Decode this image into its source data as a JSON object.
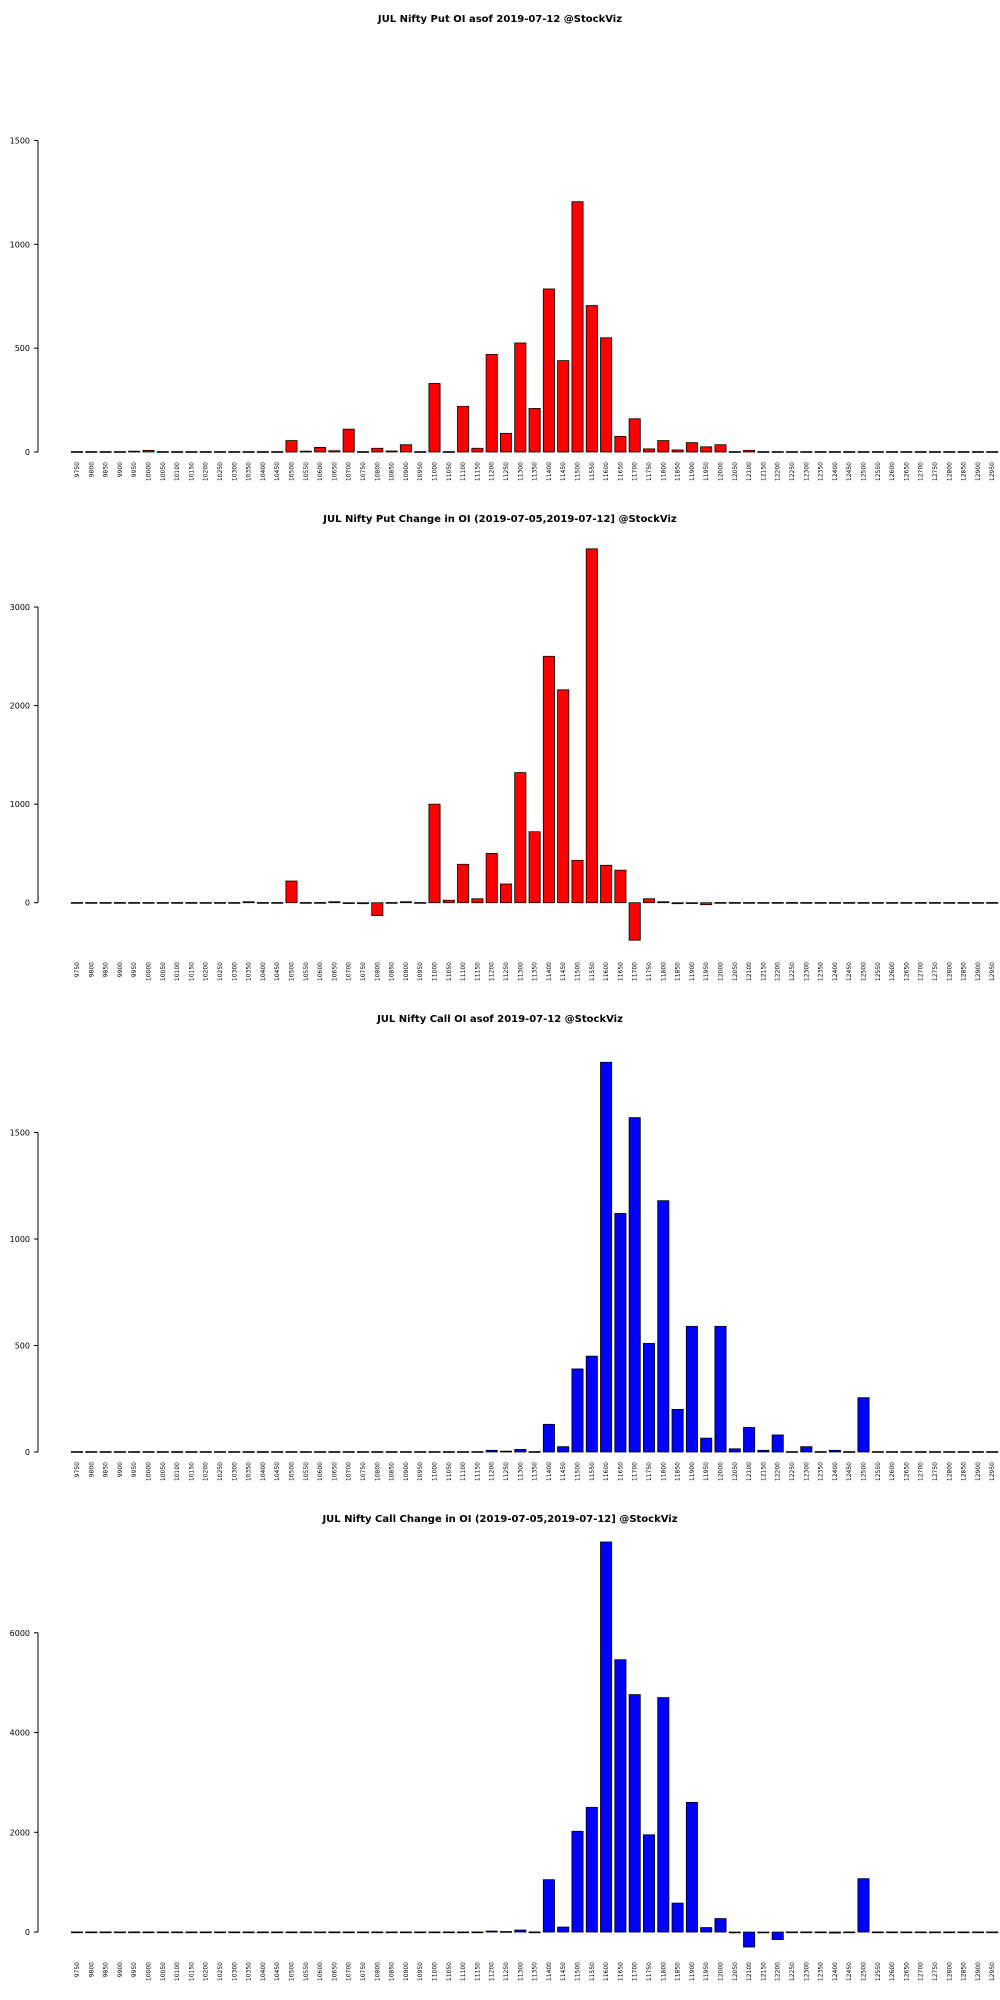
{
  "chart_data": [
    {
      "type": "bar",
      "title": "JUL Nifty Put OI asof 2019-07-12 @StockViz",
      "color": "#ff0000",
      "yticks": [
        0,
        500,
        1000,
        1500
      ],
      "ylim": [
        0,
        1560
      ],
      "categories": [
        "9750",
        "9800",
        "9850",
        "9900",
        "9950",
        "10000",
        "10050",
        "10100",
        "10150",
        "10200",
        "10250",
        "10300",
        "10350",
        "10400",
        "10450",
        "10500",
        "10550",
        "10600",
        "10650",
        "10700",
        "10750",
        "10800",
        "10850",
        "10900",
        "10950",
        "11000",
        "11050",
        "11100",
        "11150",
        "11200",
        "11250",
        "11300",
        "11350",
        "11400",
        "11450",
        "11500",
        "11550",
        "11600",
        "11650",
        "11700",
        "11750",
        "11800",
        "11850",
        "11900",
        "11950",
        "12000",
        "12050",
        "12100",
        "12150",
        "12200",
        "12250",
        "12300",
        "12350",
        "12400",
        "12450",
        "12500",
        "12550",
        "12600",
        "12650",
        "12700",
        "12750",
        "12800",
        "12850",
        "12900",
        "12950",
        "13000",
        "13050",
        "13100",
        "13150",
        "13200",
        "13250",
        "13300",
        "13350",
        "13400",
        "13450",
        "13500",
        "13550",
        "13600",
        "13650",
        "13700"
      ],
      "values": [
        2,
        2,
        2,
        2,
        4,
        8,
        2,
        2,
        2,
        2,
        2,
        2,
        2,
        2,
        2,
        55,
        4,
        22,
        6,
        110,
        2,
        18,
        5,
        35,
        2,
        330,
        2,
        220,
        18,
        470,
        90,
        525,
        210,
        785,
        440,
        1205,
        705,
        550,
        75,
        160,
        15,
        55,
        10,
        45,
        25,
        35,
        2,
        8,
        2,
        2,
        2,
        2,
        2,
        2,
        2,
        2,
        2,
        2,
        2,
        2,
        2,
        2,
        2,
        2,
        2,
        2,
        2,
        2,
        2,
        2,
        2,
        2,
        2,
        2,
        2,
        2,
        2,
        2,
        2,
        2
      ]
    },
    {
      "type": "bar",
      "title": "JUL Nifty Put Change in OI (2019-07-05,2019-07-12] @StockViz",
      "color": "#ff0000",
      "yticks": [
        0,
        1000,
        2000,
        3000
      ],
      "ylim": [
        -500,
        3700
      ],
      "categories": [
        "9750",
        "9800",
        "9850",
        "9900",
        "9950",
        "10000",
        "10050",
        "10100",
        "10150",
        "10200",
        "10250",
        "10300",
        "10350",
        "10400",
        "10450",
        "10500",
        "10550",
        "10600",
        "10650",
        "10700",
        "10750",
        "10800",
        "10850",
        "10900",
        "10950",
        "11000",
        "11050",
        "11100",
        "11150",
        "11200",
        "11250",
        "11300",
        "11350",
        "11400",
        "11450",
        "11500",
        "11550",
        "11600",
        "11650",
        "11700",
        "11750",
        "11800",
        "11850",
        "11900",
        "11950",
        "12000",
        "12050",
        "12100",
        "12150",
        "12200",
        "12250",
        "12300",
        "12350",
        "12400",
        "12450",
        "12500",
        "12550",
        "12600",
        "12650",
        "12700",
        "12750",
        "12800",
        "12850",
        "12900",
        "12950",
        "13000",
        "13050",
        "13100",
        "13150",
        "13200",
        "13250",
        "13300",
        "13350",
        "13400",
        "13450",
        "13500",
        "13550",
        "13600",
        "13650",
        "13700"
      ],
      "values": [
        2,
        2,
        2,
        2,
        2,
        2,
        2,
        2,
        2,
        2,
        2,
        2,
        10,
        2,
        2,
        220,
        2,
        2,
        10,
        -2,
        -10,
        -130,
        2,
        10,
        2,
        1000,
        25,
        390,
        40,
        500,
        190,
        1320,
        720,
        2500,
        2160,
        430,
        3590,
        380,
        330,
        -380,
        40,
        10,
        -10,
        -5,
        -20,
        2,
        2,
        2,
        2,
        2,
        2,
        2,
        2,
        2,
        2,
        2,
        2,
        2,
        2,
        2,
        2,
        2,
        2,
        2,
        2,
        2,
        2,
        2,
        2,
        2,
        2,
        2,
        2,
        2,
        2,
        2,
        2,
        2,
        2,
        2
      ]
    },
    {
      "type": "bar",
      "title": "JUL Nifty Call OI asof 2019-07-12 @StockViz",
      "color": "#0000ff",
      "yticks": [
        0,
        500,
        1000,
        1500
      ],
      "ylim": [
        0,
        1850
      ],
      "categories": [
        "9750",
        "9800",
        "9850",
        "9900",
        "9950",
        "10000",
        "10050",
        "10100",
        "10150",
        "10200",
        "10250",
        "10300",
        "10350",
        "10400",
        "10450",
        "10500",
        "10550",
        "10600",
        "10650",
        "10700",
        "10750",
        "10800",
        "10850",
        "10900",
        "10950",
        "11000",
        "11050",
        "11100",
        "11150",
        "11200",
        "11250",
        "11300",
        "11350",
        "11400",
        "11450",
        "11500",
        "11550",
        "11600",
        "11650",
        "11700",
        "11750",
        "11800",
        "11850",
        "11900",
        "11950",
        "12000",
        "12050",
        "12100",
        "12150",
        "12200",
        "12250",
        "12300",
        "12350",
        "12400",
        "12450",
        "12500",
        "12550",
        "12600",
        "12650",
        "12700",
        "12750",
        "12800",
        "12850",
        "12900",
        "12950",
        "13000",
        "13050",
        "13100",
        "13150",
        "13200",
        "13250",
        "13300",
        "13350",
        "13400",
        "13450",
        "13500",
        "13550",
        "13600",
        "13650",
        "13700"
      ],
      "values": [
        2,
        2,
        2,
        2,
        2,
        2,
        2,
        2,
        2,
        2,
        2,
        2,
        2,
        2,
        2,
        2,
        2,
        2,
        2,
        2,
        2,
        2,
        2,
        2,
        2,
        2,
        2,
        2,
        2,
        8,
        4,
        12,
        2,
        130,
        25,
        390,
        450,
        1830,
        1120,
        1570,
        510,
        1180,
        200,
        590,
        65,
        590,
        15,
        115,
        8,
        80,
        2,
        25,
        2,
        8,
        2,
        255,
        2,
        2,
        2,
        2,
        2,
        2,
        2,
        2,
        2,
        2,
        2,
        2,
        2,
        2,
        2,
        2,
        2,
        2,
        2,
        2,
        2,
        2,
        2,
        2
      ]
    },
    {
      "type": "bar",
      "title": "JUL Nifty Call Change in OI (2019-07-05,2019-07-12] @StockViz",
      "color": "#0000ff",
      "yticks": [
        0,
        2000,
        4000,
        6000
      ],
      "ylim": [
        -400,
        7900
      ],
      "categories": [
        "9750",
        "9800",
        "9850",
        "9900",
        "9950",
        "10000",
        "10050",
        "10100",
        "10150",
        "10200",
        "10250",
        "10300",
        "10350",
        "10400",
        "10450",
        "10500",
        "10550",
        "10600",
        "10650",
        "10700",
        "10750",
        "10800",
        "10850",
        "10900",
        "10950",
        "11000",
        "11050",
        "11100",
        "11150",
        "11200",
        "11250",
        "11300",
        "11350",
        "11400",
        "11450",
        "11500",
        "11550",
        "11600",
        "11650",
        "11700",
        "11750",
        "11800",
        "11850",
        "11900",
        "11950",
        "12000",
        "12050",
        "12100",
        "12150",
        "12200",
        "12250",
        "12300",
        "12350",
        "12400",
        "12450",
        "12500",
        "12550",
        "12600",
        "12650",
        "12700",
        "12750",
        "12800",
        "12850",
        "12900",
        "12950",
        "13000",
        "13050",
        "13100",
        "13150",
        "13200",
        "13250",
        "13300",
        "13350",
        "13400",
        "13450",
        "13500",
        "13550",
        "13600",
        "13650",
        "13700"
      ],
      "values": [
        2,
        2,
        2,
        2,
        2,
        2,
        2,
        2,
        2,
        2,
        2,
        2,
        2,
        2,
        2,
        2,
        2,
        2,
        2,
        2,
        2,
        2,
        2,
        2,
        2,
        2,
        2,
        2,
        2,
        20,
        10,
        40,
        2,
        1050,
        100,
        2020,
        2500,
        7820,
        5460,
        4760,
        1950,
        4700,
        580,
        2600,
        90,
        270,
        -10,
        -300,
        -5,
        -150,
        2,
        2,
        2,
        -20,
        2,
        1070,
        2,
        2,
        2,
        2,
        2,
        2,
        2,
        2,
        2,
        2,
        2,
        2,
        2,
        2,
        2,
        2,
        2,
        2,
        2,
        2,
        2,
        2,
        2,
        2
      ]
    }
  ]
}
